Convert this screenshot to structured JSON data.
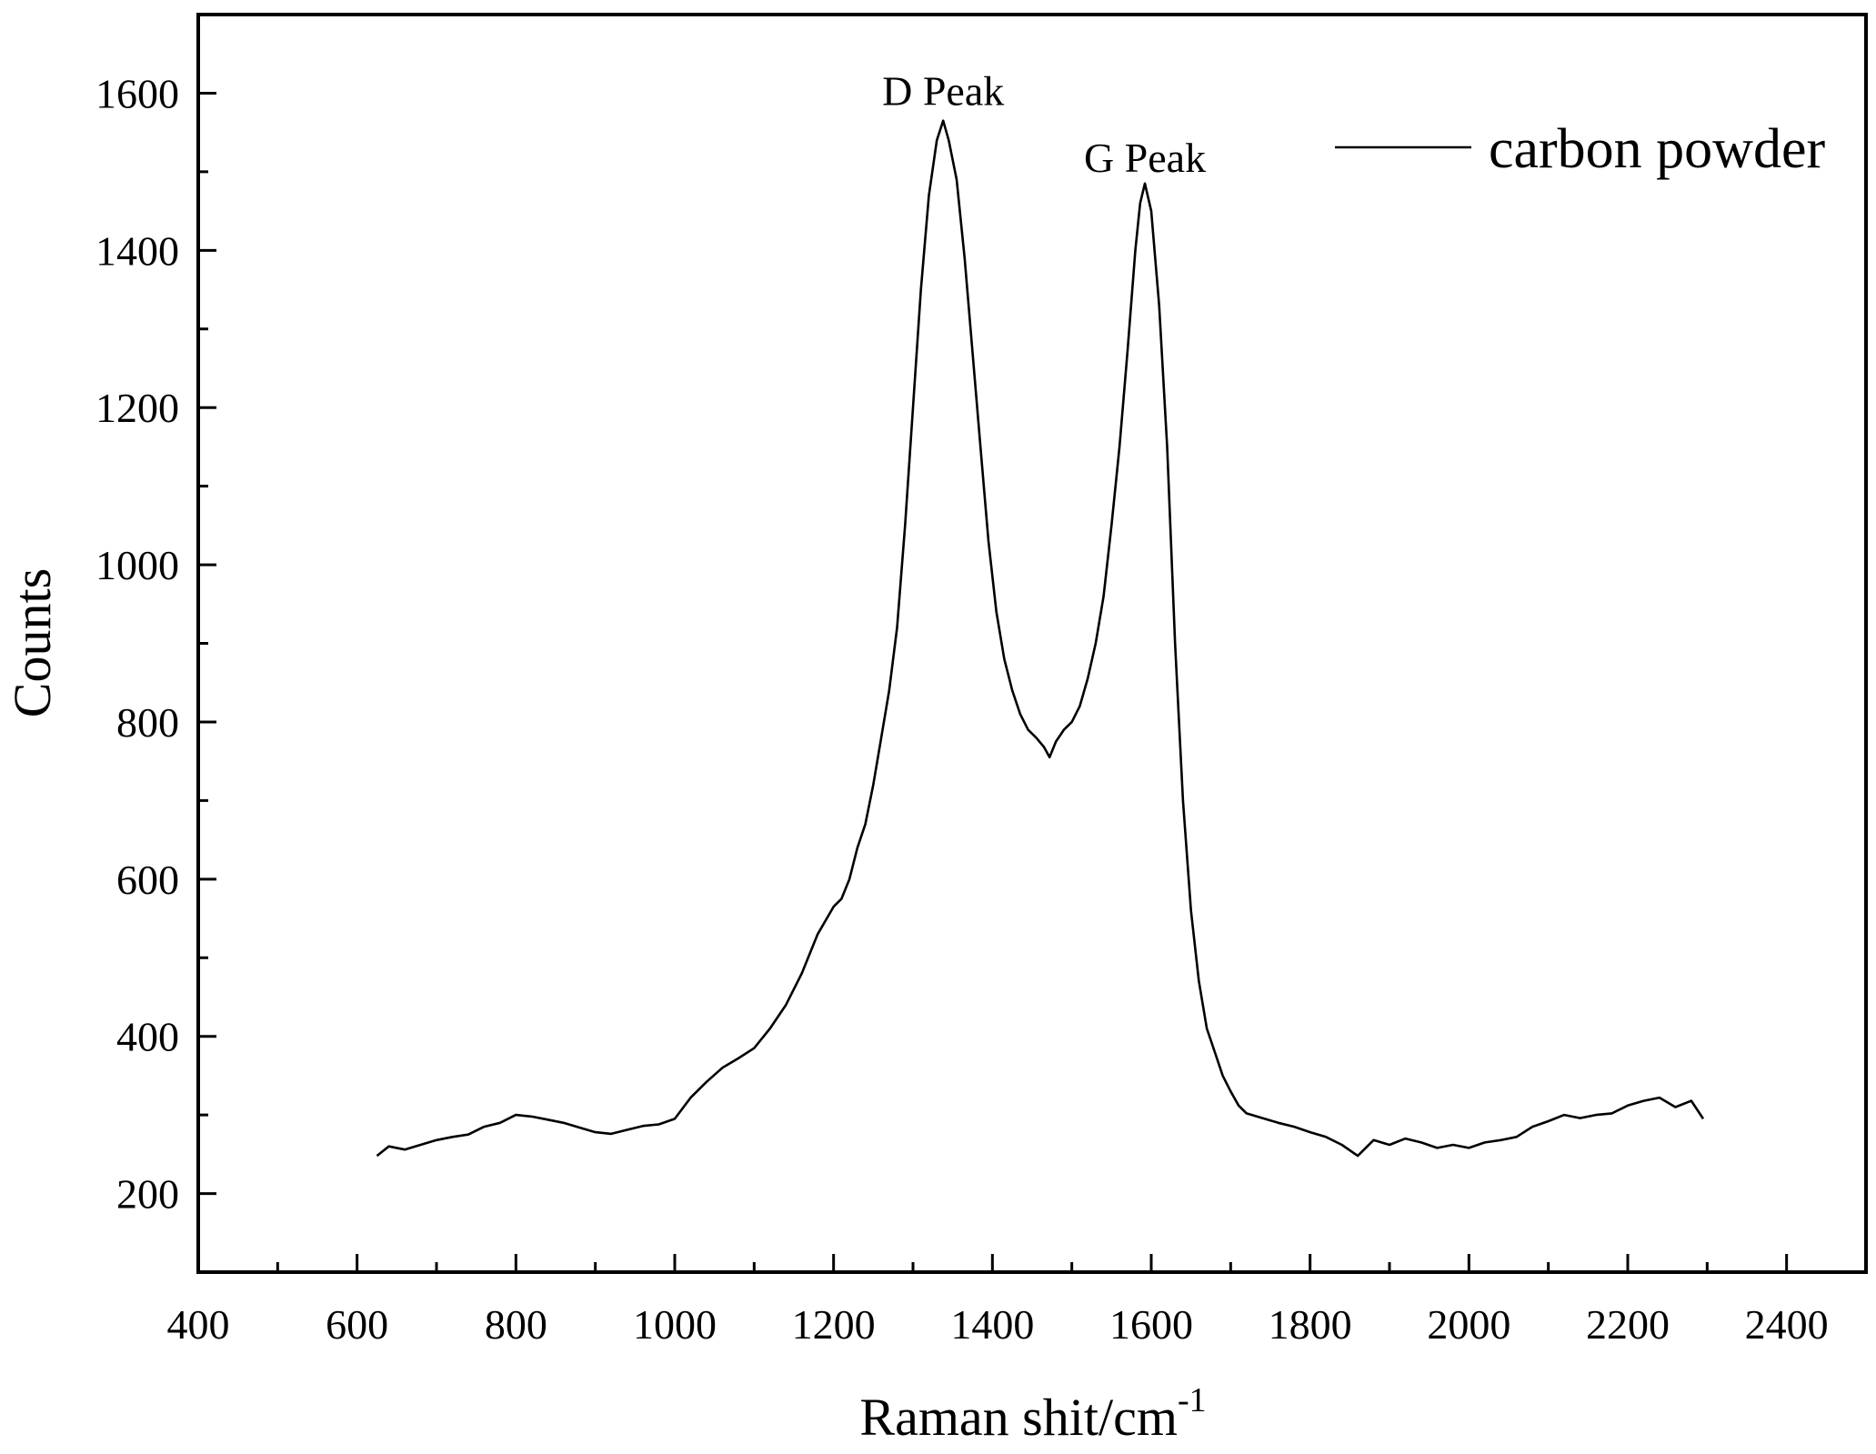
{
  "chart_data": {
    "type": "line",
    "title": "",
    "xlabel": "Raman shit/cm",
    "xlabel_superscript": "-1",
    "ylabel": "Counts",
    "xlim": [
      400,
      2500
    ],
    "ylim": [
      100,
      1700
    ],
    "x_ticks": [
      400,
      600,
      800,
      1000,
      1200,
      1400,
      1600,
      1800,
      2000,
      2200,
      2400
    ],
    "y_ticks": [
      200,
      400,
      600,
      800,
      1000,
      1200,
      1400,
      1600
    ],
    "grid": false,
    "legend_position": "top-right",
    "series": [
      {
        "name": "carbon powder",
        "color": "#000000",
        "x": [
          625,
          640,
          660,
          680,
          700,
          720,
          740,
          760,
          780,
          800,
          820,
          840,
          860,
          880,
          900,
          920,
          940,
          960,
          980,
          1000,
          1020,
          1040,
          1060,
          1080,
          1100,
          1120,
          1140,
          1160,
          1180,
          1200,
          1210,
          1220,
          1230,
          1240,
          1250,
          1260,
          1270,
          1280,
          1290,
          1300,
          1310,
          1320,
          1330,
          1338,
          1345,
          1355,
          1365,
          1375,
          1385,
          1395,
          1405,
          1415,
          1425,
          1435,
          1445,
          1455,
          1465,
          1472,
          1480,
          1490,
          1500,
          1510,
          1520,
          1530,
          1540,
          1550,
          1560,
          1570,
          1580,
          1586,
          1592,
          1600,
          1610,
          1620,
          1630,
          1640,
          1650,
          1660,
          1670,
          1680,
          1690,
          1700,
          1710,
          1720,
          1740,
          1760,
          1780,
          1800,
          1820,
          1840,
          1860,
          1880,
          1900,
          1920,
          1940,
          1960,
          1980,
          2000,
          2020,
          2040,
          2060,
          2080,
          2100,
          2120,
          2140,
          2160,
          2180,
          2200,
          2220,
          2240,
          2260,
          2280,
          2295
        ],
        "values": [
          248,
          260,
          256,
          262,
          268,
          272,
          275,
          285,
          290,
          300,
          298,
          294,
          290,
          284,
          278,
          276,
          281,
          286,
          288,
          295,
          322,
          342,
          360,
          372,
          385,
          410,
          440,
          480,
          530,
          565,
          575,
          600,
          640,
          670,
          720,
          780,
          840,
          920,
          1050,
          1200,
          1350,
          1470,
          1540,
          1565,
          1540,
          1490,
          1390,
          1270,
          1150,
          1030,
          940,
          880,
          840,
          810,
          790,
          780,
          768,
          755,
          775,
          790,
          800,
          820,
          855,
          900,
          960,
          1050,
          1150,
          1270,
          1400,
          1460,
          1485,
          1450,
          1330,
          1150,
          900,
          700,
          560,
          470,
          410,
          380,
          350,
          330,
          312,
          302,
          296,
          290,
          285,
          278,
          272,
          262,
          248,
          268,
          262,
          270,
          265,
          258,
          262,
          258,
          265,
          268,
          272,
          285,
          292,
          300,
          296,
          300,
          302,
          312,
          318,
          322,
          310,
          318,
          295
        ]
      }
    ],
    "annotations": [
      {
        "text": "D Peak",
        "x": 1338,
        "y": 1585
      },
      {
        "text": "G Peak",
        "x": 1592,
        "y": 1500
      }
    ]
  }
}
